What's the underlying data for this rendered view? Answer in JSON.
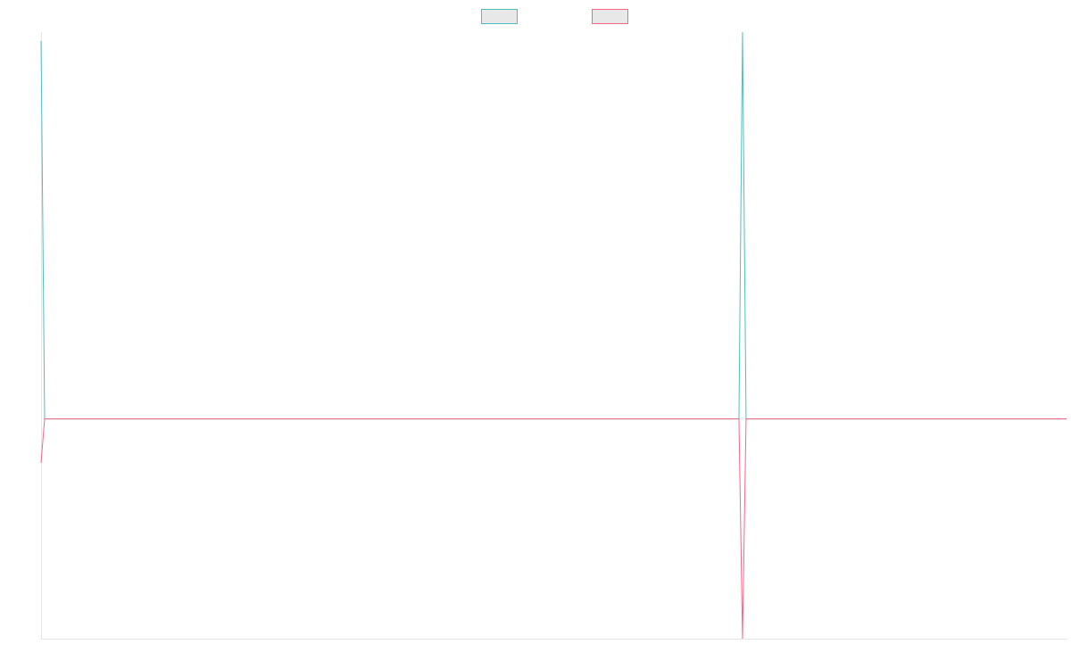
{
  "chart_data": {
    "type": "line",
    "x": [
      0,
      1,
      196,
      197,
      198,
      288
    ],
    "xlim": [
      0,
      288
    ],
    "ylim": [
      -25,
      44
    ],
    "legend": "top",
    "series": [
      {
        "color": "#4bc0c0",
        "values": [
          43,
          0,
          0,
          44,
          0,
          0
        ]
      },
      {
        "color": "#ff6384",
        "values": [
          -5,
          0,
          0,
          -25,
          0,
          0
        ]
      }
    ]
  }
}
